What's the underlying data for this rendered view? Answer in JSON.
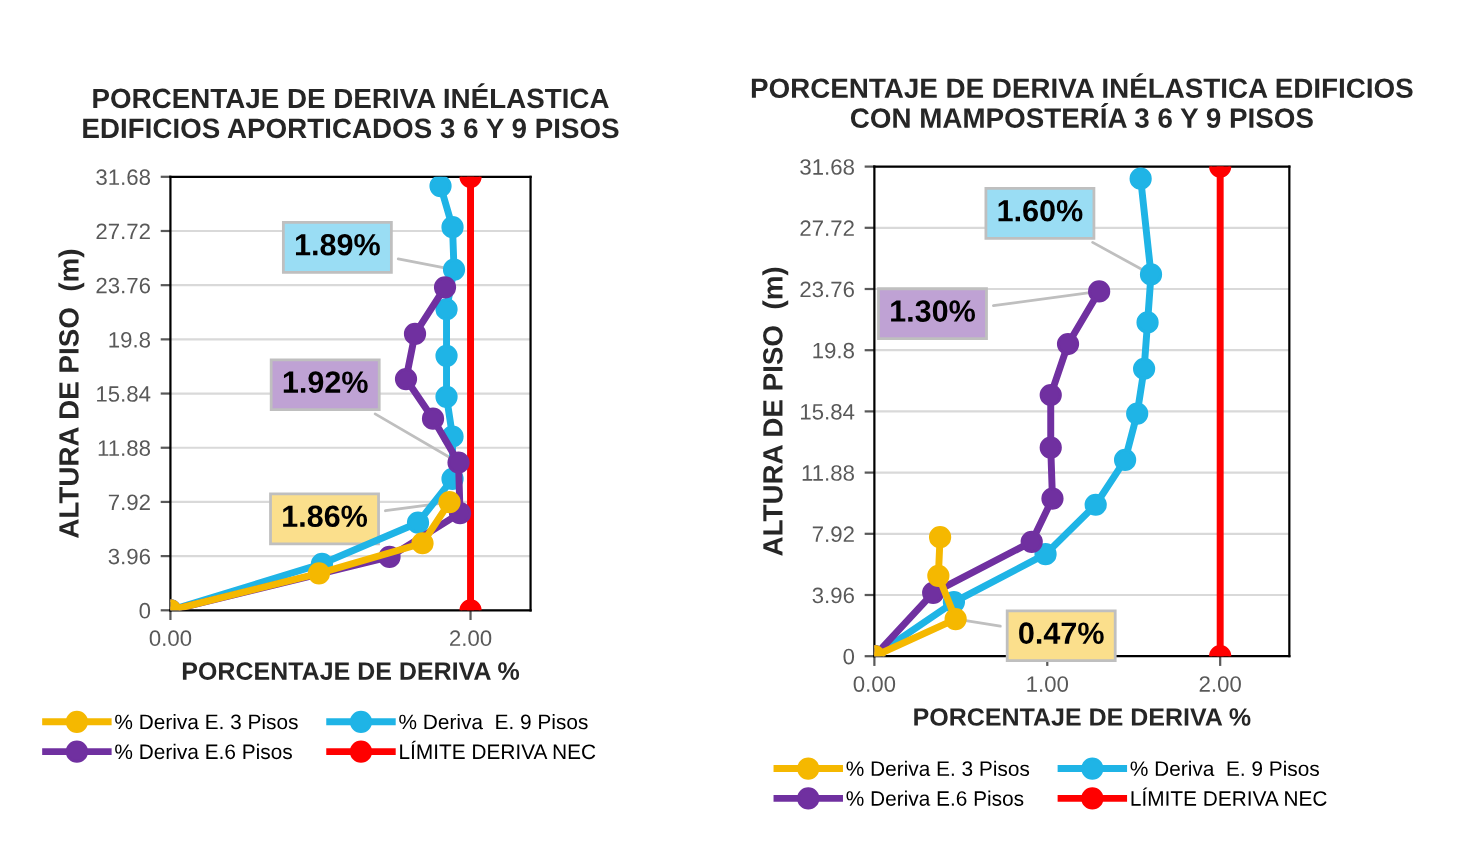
{
  "chart_data": [
    {
      "type": "line",
      "title": "PORCENTAJE DE DERIVA INÉLASTICA\nEDIFICIOS APORTICADOS 3 6 Y 9 PISOS",
      "xlabel": "PORCENTAJE DE DERIVA %",
      "ylabel": "ALTURA DE PISO  (m)",
      "xlim": [
        0,
        2.4
      ],
      "xticks": [
        {
          "value": 0,
          "label": "0.00"
        },
        {
          "value": 2,
          "label": "2.00"
        }
      ],
      "ylim": [
        0,
        31.68
      ],
      "yticks": [
        0,
        3.96,
        7.92,
        11.88,
        15.84,
        19.8,
        23.76,
        27.72,
        31.68
      ],
      "grid": "y",
      "legend": "bottom",
      "marker": "circle",
      "line_style": "solid",
      "series": [
        {
          "name": "% Deriva E. 3 Pisos",
          "color": "#f5b800",
          "x": [
            0,
            0.99,
            1.68,
            1.86
          ],
          "values": [
            0,
            2.7,
            4.9,
            7.9
          ]
        },
        {
          "name": "% Deriva E.6 Pisos",
          "color": "#7030a0",
          "x": [
            0,
            1.46,
            1.93,
            1.92,
            1.75,
            1.57,
            1.63,
            1.83
          ],
          "values": [
            0,
            3.9,
            7.1,
            10.8,
            14.0,
            16.9,
            20.2,
            23.6
          ]
        },
        {
          "name": "% Deriva  E. 9 Pisos",
          "color": "#1fb4e6",
          "x": [
            0,
            1.01,
            1.65,
            1.88,
            1.88,
            1.84,
            1.84,
            1.84,
            1.89,
            1.88,
            1.8
          ],
          "values": [
            0,
            3.4,
            6.4,
            9.6,
            12.7,
            15.6,
            18.6,
            22.0,
            24.9,
            28.0,
            31.0
          ]
        },
        {
          "name": "LÍMITE DERIVA NEC",
          "color": "#ff0000",
          "x": [
            2,
            2
          ],
          "values": [
            0,
            31.68
          ]
        }
      ],
      "annotations": [
        {
          "text": "1.89%",
          "x": 1.89,
          "y": 24.9
        },
        {
          "text": "1.92%",
          "x": 1.92,
          "y": 10.8
        },
        {
          "text": "1.86%",
          "x": 1.86,
          "y": 7.9
        }
      ]
    },
    {
      "type": "line",
      "title": "PORCENTAJE DE DERIVA INÉLASTICA EDIFICIOS\nCON MAMPOSTERÍA 3 6 Y 9 PISOS",
      "xlabel": "PORCENTAJE DE DERIVA %",
      "ylabel": "ALTURA DE PISO  (m)",
      "xlim": [
        0,
        2.4
      ],
      "xticks": [
        {
          "value": 0,
          "label": "0.00"
        },
        {
          "value": 1,
          "label": "1.00"
        },
        {
          "value": 2,
          "label": "2.00"
        }
      ],
      "ylim": [
        0,
        31.68
      ],
      "yticks": [
        0,
        3.96,
        7.92,
        11.88,
        15.84,
        19.8,
        23.76,
        27.72,
        31.68
      ],
      "grid": "y",
      "legend": "bottom",
      "marker": "circle",
      "line_style": "solid",
      "series": [
        {
          "name": "% Deriva E. 3 Pisos",
          "color": "#f5b800",
          "x": [
            0,
            0.47,
            0.37,
            0.38
          ],
          "values": [
            0,
            2.4,
            5.2,
            7.7
          ]
        },
        {
          "name": "% Deriva E.6 Pisos",
          "color": "#7030a0",
          "x": [
            0,
            0.34,
            0.91,
            1.03,
            1.02,
            1.02,
            1.12,
            1.3
          ],
          "values": [
            0,
            4.1,
            7.4,
            10.2,
            13.5,
            16.9,
            20.2,
            23.6
          ]
        },
        {
          "name": "% Deriva  E. 9 Pisos",
          "color": "#1fb4e6",
          "x": [
            0,
            0.46,
            0.99,
            1.28,
            1.45,
            1.52,
            1.56,
            1.58,
            1.6,
            1.54
          ],
          "values": [
            0,
            3.5,
            6.6,
            9.8,
            12.7,
            15.7,
            18.6,
            21.6,
            24.7,
            30.9
          ]
        },
        {
          "name": "LÍMITE DERIVA NEC",
          "color": "#ff0000",
          "x": [
            2,
            2
          ],
          "values": [
            0,
            31.68
          ]
        }
      ],
      "annotations": [
        {
          "text": "1.60%",
          "x": 1.6,
          "y": 24.7
        },
        {
          "text": "1.30%",
          "x": 1.3,
          "y": 23.6
        },
        {
          "text": "0.47%",
          "x": 0.47,
          "y": 2.4
        }
      ]
    }
  ]
}
